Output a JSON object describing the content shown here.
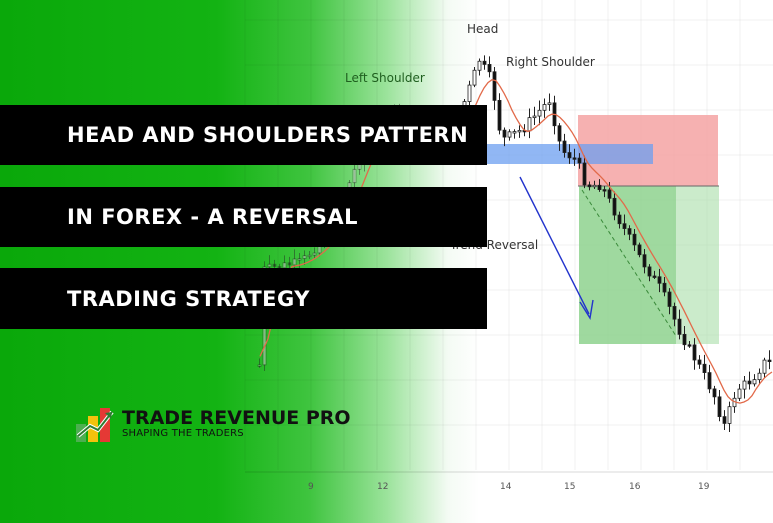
{
  "banner": {
    "line1": "HEAD AND SHOULDERS PATTERN",
    "line2": "IN FOREX - A REVERSAL",
    "line3": "TRADING STRATEGY"
  },
  "annotations": {
    "head": "Head",
    "left_shoulder": "Left Shoulder",
    "right_shoulder": "Right Shoulder",
    "trend_reversal": "Trend Reversal"
  },
  "brand": {
    "name": "TRADE REVENUE PRO",
    "tagline": "SHAPING THE TRADERS",
    "logo_icon": "rising-arrow-bars-icon"
  },
  "x_axis": {
    "ticks": [
      "9",
      "12",
      "14",
      "15",
      "16",
      "19"
    ]
  },
  "colors": {
    "green": "#13b313",
    "stop_zone": "#f4a3a3",
    "target_zone": "#9bd99b",
    "neckline": "#6c9ff0",
    "arrow": "#2233cc",
    "moving_average": "#e26a4a"
  }
}
